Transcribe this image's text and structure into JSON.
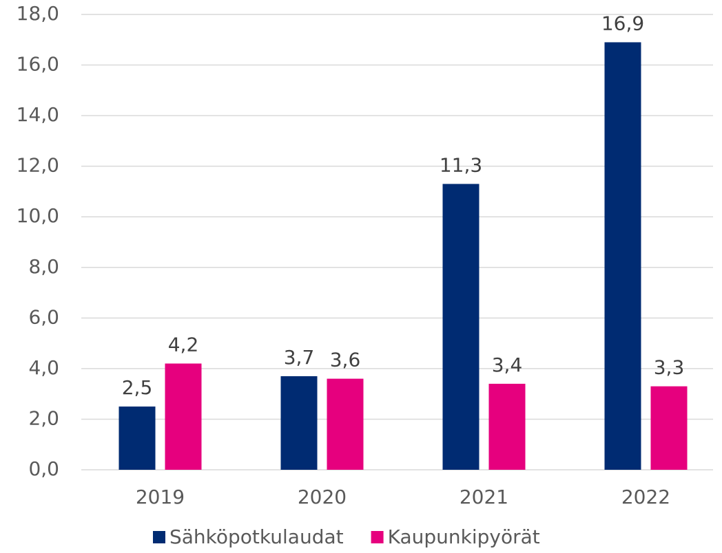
{
  "chart_data": {
    "type": "bar",
    "categories": [
      "2019",
      "2020",
      "2021",
      "2022"
    ],
    "series": [
      {
        "name": "Sähköpotkulaudat",
        "color": "#002b72",
        "values": [
          2.5,
          3.7,
          11.3,
          16.9
        ],
        "value_labels": [
          "2,5",
          "3,7",
          "11,3",
          "16,9"
        ]
      },
      {
        "name": "Kaupunkipyörät",
        "color": "#e6007e",
        "values": [
          4.2,
          3.6,
          3.4,
          3.3
        ],
        "value_labels": [
          "4,2",
          "3,6",
          "3,4",
          "3,3"
        ]
      }
    ],
    "ylim": [
      0,
      18
    ],
    "yticks": [
      {
        "value": 0,
        "label": "0,0"
      },
      {
        "value": 2,
        "label": "2,0"
      },
      {
        "value": 4,
        "label": "4,0"
      },
      {
        "value": 6,
        "label": "6,0"
      },
      {
        "value": 8,
        "label": "8,0"
      },
      {
        "value": 10,
        "label": "10,0"
      },
      {
        "value": 12,
        "label": "12,0"
      },
      {
        "value": 14,
        "label": "14,0"
      },
      {
        "value": 16,
        "label": "16,0"
      },
      {
        "value": 18,
        "label": "18,0"
      }
    ],
    "grid": true,
    "legend": "bottom"
  }
}
